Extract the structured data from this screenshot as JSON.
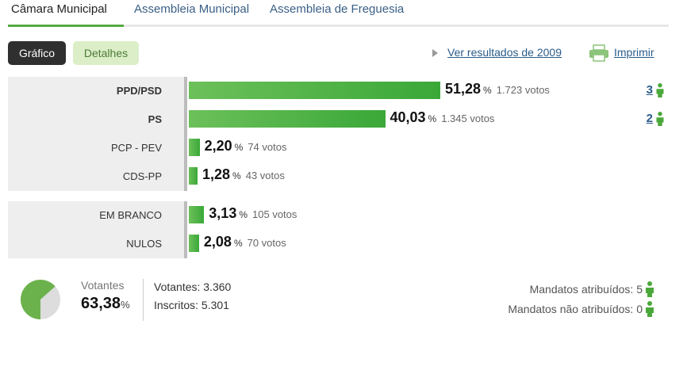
{
  "tabs": [
    "Câmara Municipal",
    "Assembleia Municipal",
    "Assembleia de Freguesia"
  ],
  "buttons": {
    "grafico": "Gráfico",
    "detalhes": "Detalhes"
  },
  "links": {
    "previous_results": "Ver resultados de 2009",
    "print": "Imprimir"
  },
  "colors": {
    "bar": "#3aa838",
    "accent": "#55a944",
    "link": "#2a5c8a"
  },
  "results": [
    {
      "party": "PPD/PSD",
      "bold": true,
      "percent": 51.28,
      "percent_text": "51,28",
      "votes_text": "1.723 votos",
      "seats": "3"
    },
    {
      "party": "PS",
      "bold": true,
      "percent": 40.03,
      "percent_text": "40,03",
      "votes_text": "1.345 votos",
      "seats": "2"
    },
    {
      "party": "PCP - PEV",
      "bold": false,
      "percent": 2.2,
      "percent_text": "2,20",
      "votes_text": "74 votos",
      "seats": ""
    },
    {
      "party": "CDS-PP",
      "bold": false,
      "percent": 1.28,
      "percent_text": "1,28",
      "votes_text": "43 votos",
      "seats": ""
    }
  ],
  "other": [
    {
      "party": "EM BRANCO",
      "percent": 3.13,
      "percent_text": "3,13",
      "votes_text": "105 votos"
    },
    {
      "party": "NULOS",
      "percent": 2.08,
      "percent_text": "2,08",
      "votes_text": "70 votos"
    }
  ],
  "percent_sign": "%",
  "summary": {
    "turnout_label": "Votantes",
    "turnout_value": "63,38",
    "turnout_fraction": 0.6338,
    "percent_sign": "%",
    "voters": "Votantes: 3.360",
    "registered": "Inscritos: 5.301",
    "seats_assigned": "Mandatos atribuídos: 5",
    "seats_unassigned": "Mandatos não atribuídos: 0"
  }
}
